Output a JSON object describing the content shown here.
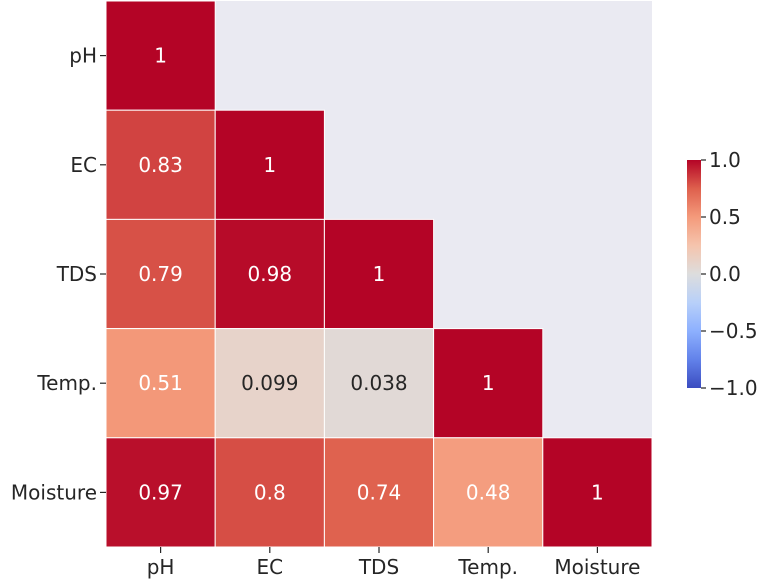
{
  "chart_data": {
    "type": "heatmap",
    "title": "",
    "xlabel": "",
    "ylabel": "",
    "labels": [
      "pH",
      "EC",
      "TDS",
      "Temp.",
      "Moisture"
    ],
    "cells": [
      {
        "row": 0,
        "col": 0,
        "value": 1,
        "text": "1"
      },
      {
        "row": 1,
        "col": 0,
        "value": 0.83,
        "text": "0.83"
      },
      {
        "row": 1,
        "col": 1,
        "value": 1,
        "text": "1"
      },
      {
        "row": 2,
        "col": 0,
        "value": 0.79,
        "text": "0.79"
      },
      {
        "row": 2,
        "col": 1,
        "value": 0.98,
        "text": "0.98"
      },
      {
        "row": 2,
        "col": 2,
        "value": 1,
        "text": "1"
      },
      {
        "row": 3,
        "col": 0,
        "value": 0.51,
        "text": "0.51"
      },
      {
        "row": 3,
        "col": 1,
        "value": 0.099,
        "text": "0.099"
      },
      {
        "row": 3,
        "col": 2,
        "value": 0.038,
        "text": "0.038"
      },
      {
        "row": 3,
        "col": 3,
        "value": 1,
        "text": "1"
      },
      {
        "row": 4,
        "col": 0,
        "value": 0.97,
        "text": "0.97"
      },
      {
        "row": 4,
        "col": 1,
        "value": 0.8,
        "text": "0.8"
      },
      {
        "row": 4,
        "col": 2,
        "value": 0.74,
        "text": "0.74"
      },
      {
        "row": 4,
        "col": 3,
        "value": 0.48,
        "text": "0.48"
      },
      {
        "row": 4,
        "col": 4,
        "value": 1,
        "text": "1"
      }
    ],
    "mask": "upper-triangle",
    "colormap": "coolwarm",
    "vmin": -1.0,
    "vmax": 1.0,
    "colorbar": {
      "ticks": [
        1.0,
        0.5,
        0.0,
        -0.5,
        -1.0
      ],
      "tick_labels": [
        "1.0",
        "0.5",
        "0.0",
        "−0.5",
        "−1.0"
      ]
    },
    "masked_color": "#eaeaf2",
    "grid": false
  }
}
